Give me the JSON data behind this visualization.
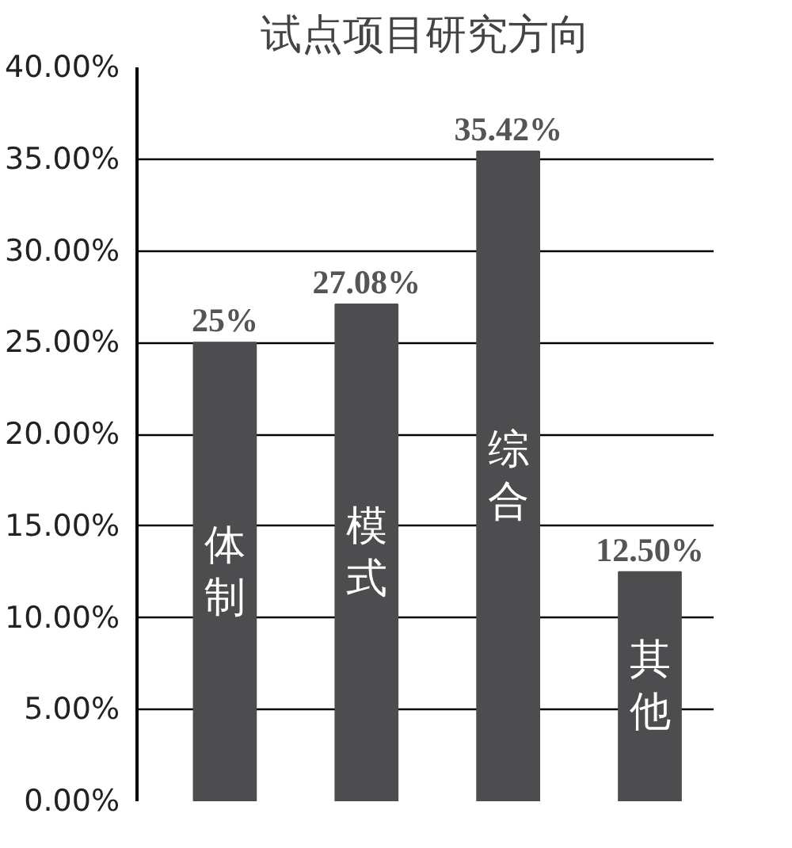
{
  "chart_data": {
    "type": "bar",
    "title": "试点项目研究方向",
    "categories": [
      "体制",
      "模式",
      "综合",
      "其他"
    ],
    "values": [
      25,
      27.08,
      35.42,
      12.5
    ],
    "value_labels": [
      "25%",
      "27.08%",
      "35.42%",
      "12.50%"
    ],
    "color": "#4d4d4f",
    "ylim": [
      0,
      40
    ],
    "yticks": [
      {
        "value": 0,
        "label": "0.00%"
      },
      {
        "value": 5,
        "label": "5.00%"
      },
      {
        "value": 10,
        "label": "10.00%"
      },
      {
        "value": 15,
        "label": "15.00%"
      },
      {
        "value": 20,
        "label": "20.00%"
      },
      {
        "value": 25,
        "label": "25.00%"
      },
      {
        "value": 30,
        "label": "30.00%"
      },
      {
        "value": 35,
        "label": "35.00%"
      },
      {
        "value": 40,
        "label": "40.00%"
      }
    ],
    "grid": "y"
  }
}
